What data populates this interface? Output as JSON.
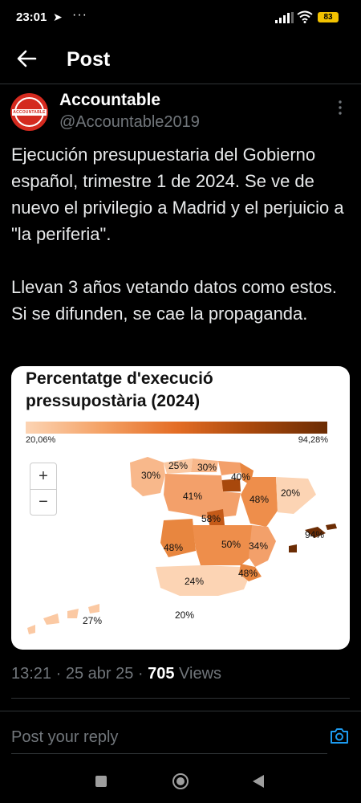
{
  "status_bar": {
    "time": "23:01",
    "telegram_icon": "telegram-icon",
    "more": "···",
    "battery": "83"
  },
  "header": {
    "title": "Post",
    "back_icon": "arrow-left-icon"
  },
  "post": {
    "author_name": "Accountable",
    "handle": "@Accountable2019",
    "avatar_text": "ACCOUNTABLE",
    "text_paragraphs": [
      "Ejecución presupuestaria del Gobierno español, trimestre 1 de 2024. Se ve de nuevo el privilegio a Madrid y el perjuicio a \"la periferia\".",
      "Llevan 3 años vetando datos como estos. Si se difunden, se cae la propaganda."
    ],
    "timestamp": "13:21 · 25 abr 25 · ",
    "views_count": "705",
    "views_label": " Views"
  },
  "chart_card": {
    "title": "Percentatge d'execució pressupostària (2024)",
    "scale_min": "20,06%",
    "scale_max": "94,28%",
    "zoom_in": "+",
    "zoom_out": "−"
  },
  "chart_data": {
    "type": "choropleth",
    "title": "Percentatge d'execució pressupostària (2024)",
    "scale": {
      "min": 20.06,
      "max": 94.28,
      "min_label": "20,06%",
      "max_label": "94,28%"
    },
    "labels": [
      "30%",
      "25%",
      "30%",
      "40%",
      "20%",
      "41%",
      "48%",
      "58%",
      "48%",
      "50%",
      "34%",
      "94%",
      "24%",
      "48%",
      "20%",
      "27%"
    ],
    "values": [
      30,
      25,
      30,
      40,
      20,
      41,
      48,
      58,
      48,
      50,
      34,
      94,
      24,
      48,
      20,
      27
    ]
  },
  "reply": {
    "placeholder": "Post your reply"
  },
  "colors": {
    "background": "#000000",
    "accent": "#1d9bf0",
    "muted": "#71767b",
    "avatar": "#d42a1f"
  }
}
